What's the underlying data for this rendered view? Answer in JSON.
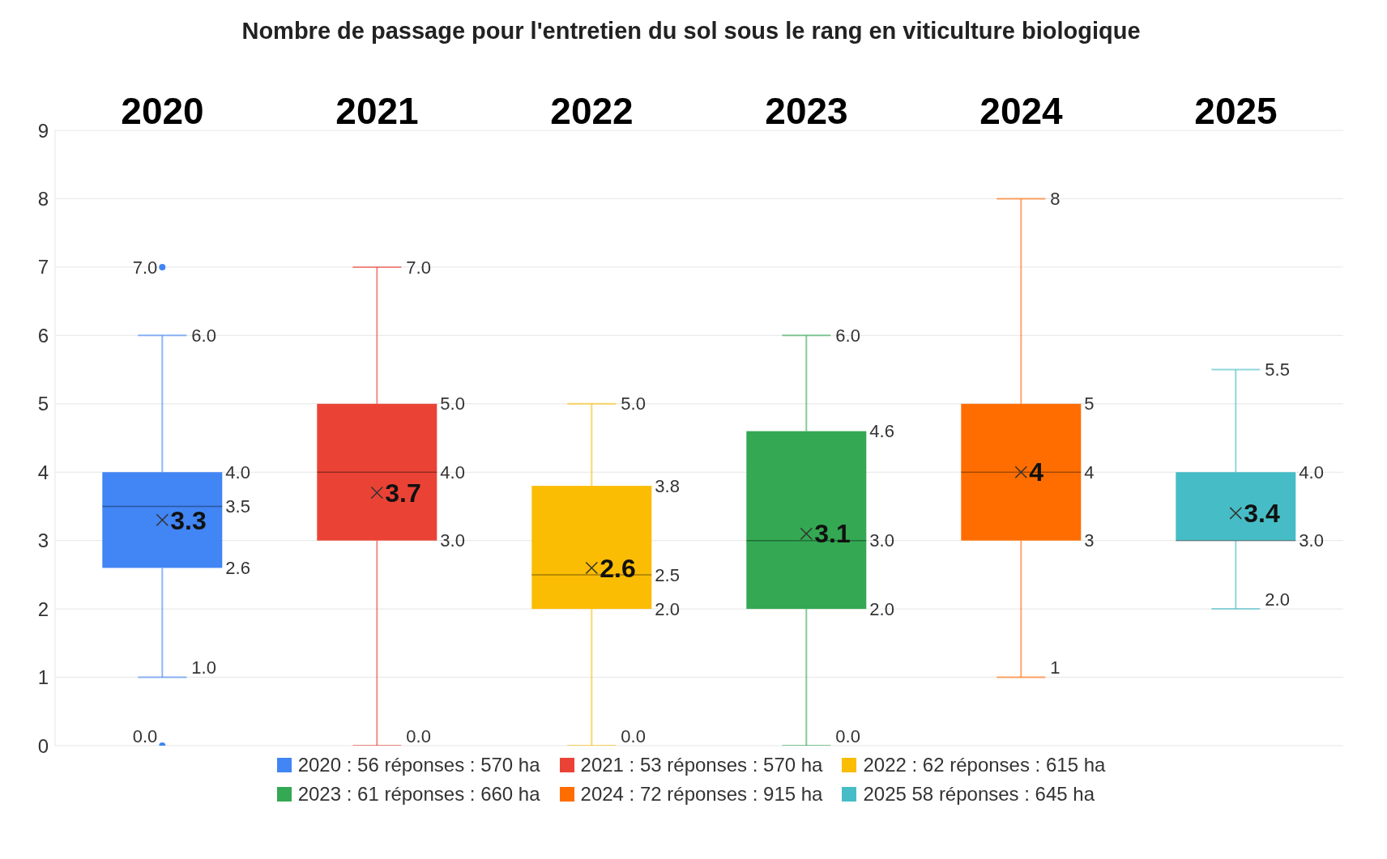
{
  "chart_data": {
    "type": "box",
    "title": "Nombre de passage pour l'entretien du sol sous le rang en viticulture biologique",
    "categories": [
      "2020",
      "2021",
      "2022",
      "2023",
      "2024",
      "2025"
    ],
    "series": [
      {
        "name": "2020 : 56 réponses : 570 ha",
        "color": "#4285f4",
        "boxes": [
          {
            "low": 1.0,
            "q1": 2.6,
            "median": 3.5,
            "q3": 4.0,
            "high": 6.0,
            "mean": 3.3,
            "outliers": [
              7.0,
              0.0
            ]
          },
          null,
          null,
          null,
          null,
          null
        ],
        "value_labels": [
          [
            "1.0",
            "2.6",
            "3.5",
            "4.0",
            "6.0",
            "3.3",
            "7.0",
            "0.0"
          ],
          null,
          null,
          null,
          null,
          null
        ]
      },
      {
        "name": "2021 : 53 réponses : 570 ha",
        "color": "#ea4335",
        "boxes": [
          null,
          {
            "low": 0.0,
            "q1": 3.0,
            "median": 4.0,
            "q3": 5.0,
            "high": 7.0,
            "mean": 3.7
          },
          null,
          null,
          null,
          null
        ],
        "value_labels": [
          null,
          [
            "0.0",
            "3.0",
            "4.0",
            "5.0",
            "7.0",
            "3.7"
          ],
          null,
          null,
          null,
          null
        ]
      },
      {
        "name": "2022 : 62 réponses : 615 ha",
        "color": "#fbbc04",
        "boxes": [
          null,
          null,
          {
            "low": 0.0,
            "q1": 2.0,
            "median": 2.5,
            "q3": 3.8,
            "high": 5.0,
            "mean": 2.6
          },
          null,
          null,
          null
        ],
        "value_labels": [
          null,
          null,
          [
            "0.0",
            "2.0",
            "2.5",
            "3.8",
            "5.0",
            "2.6"
          ],
          null,
          null,
          null
        ]
      },
      {
        "name": "2023 : 61 réponses : 660 ha",
        "color": "#34a853",
        "boxes": [
          null,
          null,
          null,
          {
            "low": 0.0,
            "q1": 2.0,
            "median": 3.0,
            "q3": 4.6,
            "high": 6.0,
            "mean": 3.1
          },
          null,
          null
        ],
        "value_labels": [
          null,
          null,
          null,
          [
            "0.0",
            "2.0",
            "3.0",
            "4.6",
            "6.0",
            "3.1"
          ],
          null,
          null
        ]
      },
      {
        "name": "2024 : 72 réponses : 915 ha",
        "color": "#ff6d01",
        "boxes": [
          null,
          null,
          null,
          null,
          {
            "low": 1,
            "q1": 3,
            "median": 4,
            "q3": 5,
            "high": 8,
            "mean": 4
          },
          null
        ],
        "value_labels": [
          null,
          null,
          null,
          null,
          [
            "1",
            "3",
            "4",
            "5",
            "8",
            "4"
          ],
          null
        ]
      },
      {
        "name": "2025 58 réponses : 645 ha",
        "color": "#46bdc6",
        "boxes": [
          null,
          null,
          null,
          null,
          null,
          {
            "low": 2.0,
            "q1": 3.0,
            "median": 3.0,
            "q3": 4.0,
            "high": 5.5,
            "mean": 3.4
          }
        ],
        "value_labels": [
          null,
          null,
          null,
          null,
          null,
          [
            "2.0",
            "3.0",
            null,
            "4.0",
            "5.5",
            "3.4"
          ]
        ]
      }
    ],
    "ylim": [
      0,
      9
    ],
    "yticks": [
      0,
      1,
      2,
      3,
      4,
      5,
      6,
      7,
      8,
      9
    ],
    "grid": "y",
    "legend": "bottom"
  }
}
